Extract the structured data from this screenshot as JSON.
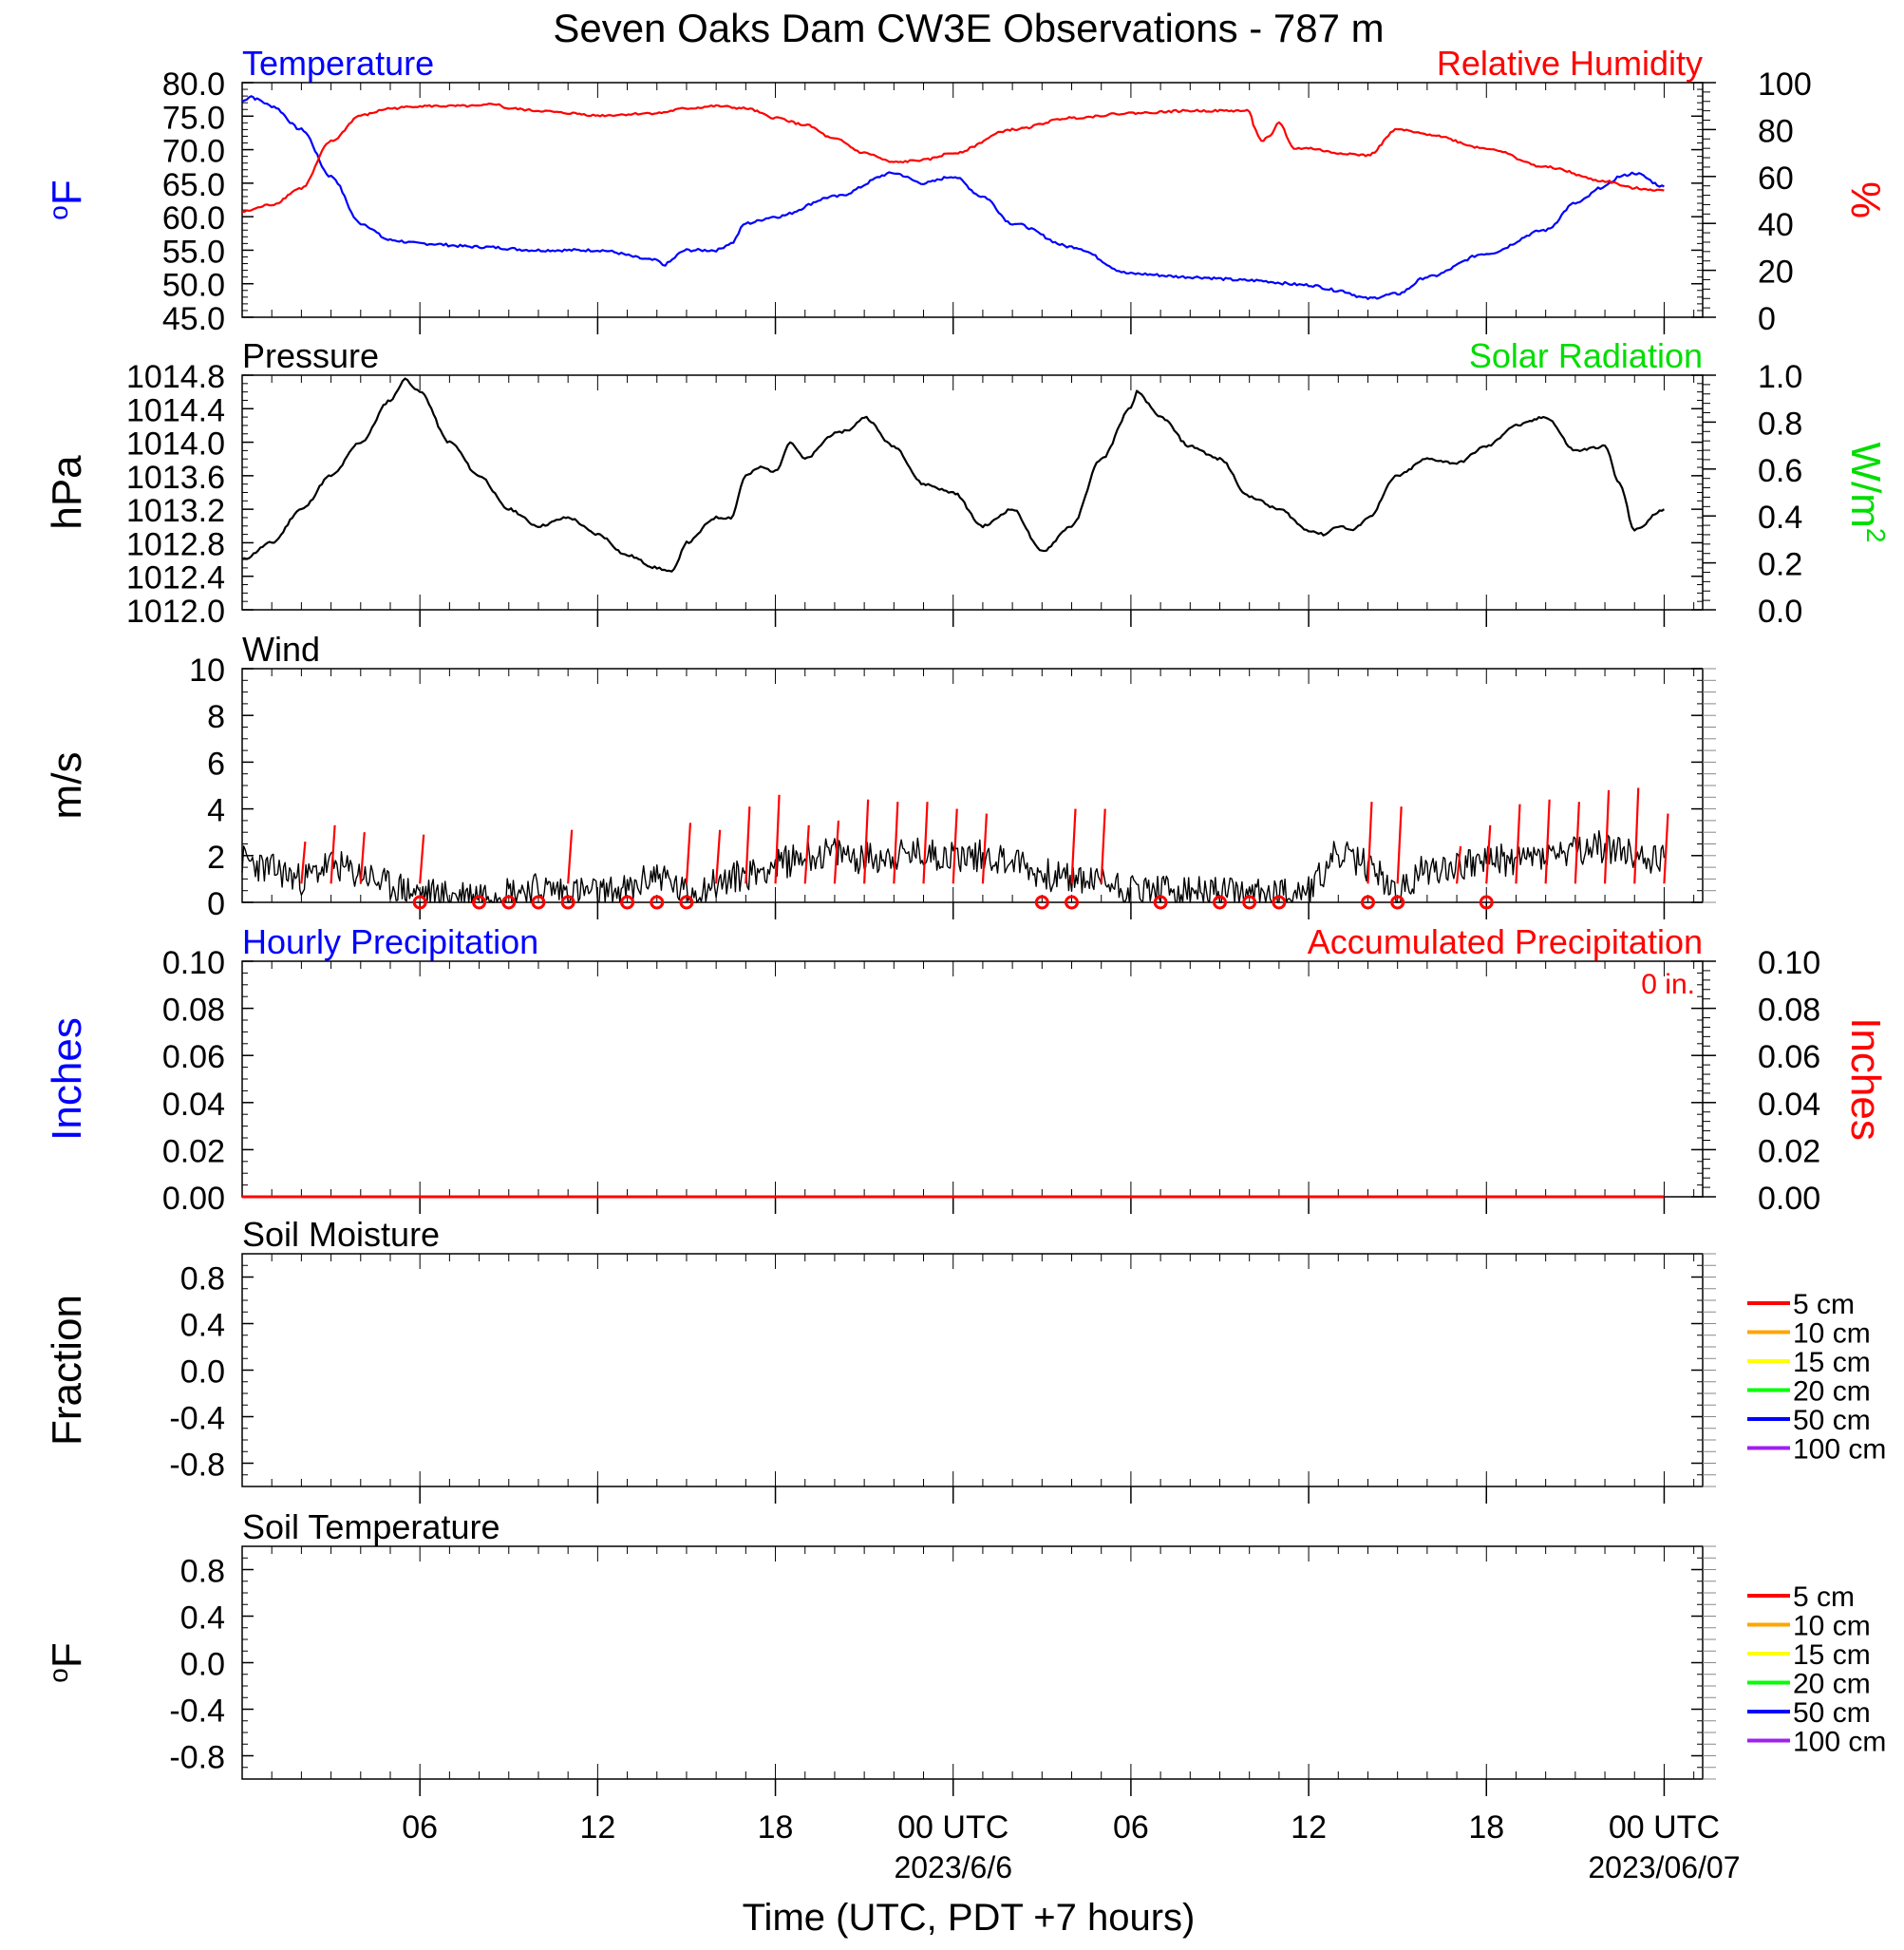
{
  "title": "Seven Oaks Dam CW3E Observations - 787 m",
  "xlabel": "Time (UTC, PDT +7 hours)",
  "x_ticks": [
    {
      "hour": 6,
      "label": "06",
      "sub": ""
    },
    {
      "hour": 12,
      "label": "12",
      "sub": ""
    },
    {
      "hour": 18,
      "label": "18",
      "sub": ""
    },
    {
      "hour": 24,
      "label": "00 UTC",
      "sub": "2023/6/6"
    },
    {
      "hour": 30,
      "label": "06",
      "sub": ""
    },
    {
      "hour": 36,
      "label": "12",
      "sub": ""
    },
    {
      "hour": 42,
      "label": "18",
      "sub": ""
    },
    {
      "hour": 48,
      "label": "00 UTC",
      "sub": "2023/06/07"
    }
  ],
  "colors": {
    "temperature": "#0000ff",
    "rh": "#ff0000",
    "pressure": "#000000",
    "solar": "#00dd00",
    "wind": "#000000",
    "barb": "#ff0000",
    "precip_hourly": "#0000ff",
    "precip_accum": "#ff0000"
  },
  "chart_data": [
    {
      "id": "temp_rh",
      "type": "line",
      "title_left": "Temperature",
      "title_right": "Relative Humidity",
      "ylabel_left": "oF",
      "ylabel_right": "%",
      "ylim_left": [
        45,
        80
      ],
      "yticks_left": [
        "80.0",
        "75.0",
        "70.0",
        "65.0",
        "60.0",
        "55.0",
        "50.0",
        "45.0"
      ],
      "ylim_right": [
        0,
        100
      ],
      "yticks_right": [
        "100",
        "80",
        "60",
        "40",
        "20",
        "0"
      ],
      "series": [
        {
          "name": "Temperature",
          "axis": "left",
          "x": [
            0,
            0.3,
            0.5,
            1,
            2,
            3,
            4,
            5,
            6,
            8,
            10,
            12,
            14,
            14.2,
            15,
            16,
            16.5,
            17,
            18,
            20,
            22,
            23,
            24,
            25,
            26,
            28,
            30,
            32,
            34,
            36,
            37,
            38,
            39,
            40,
            42,
            44,
            45,
            46,
            46.5,
            47,
            48
          ],
          "y": [
            77.2,
            78,
            77.5,
            76.5,
            73,
            66,
            59,
            56.5,
            56,
            55.5,
            55,
            55,
            53.5,
            52.8,
            55,
            55,
            56,
            59,
            60,
            63,
            66.5,
            65,
            66,
            63,
            59,
            55.5,
            51.5,
            51,
            50.5,
            49.8,
            49,
            47.8,
            48.5,
            51,
            54.5,
            58,
            62,
            64.5,
            66,
            66.5,
            64.5
          ]
        },
        {
          "name": "Relative Humidity",
          "axis": "right",
          "x": [
            0,
            1,
            2,
            3,
            4,
            5,
            6,
            8,
            8.5,
            9,
            10,
            11,
            12,
            14,
            15,
            16,
            17,
            18,
            19,
            20,
            21,
            22,
            23,
            24,
            26,
            28,
            30,
            32,
            33,
            34,
            34.2,
            34.4,
            34.7,
            35,
            35.5,
            36,
            37,
            38,
            39,
            40,
            42,
            44,
            46,
            47,
            48
          ],
          "y": [
            45,
            48,
            55,
            75,
            86,
            89,
            90,
            90,
            91,
            89,
            88,
            87,
            86,
            87,
            89,
            90,
            89,
            85,
            82,
            76,
            70,
            66,
            67,
            70,
            80,
            85,
            87,
            88,
            88,
            88,
            80,
            75,
            77,
            83,
            72,
            72,
            70,
            69,
            80,
            78,
            72,
            64,
            58,
            55,
            54
          ]
        }
      ]
    },
    {
      "id": "pressure",
      "type": "line",
      "title_left": "Pressure",
      "title_right": "Solar Radiation",
      "ylabel_left": "hPa",
      "ylabel_right": "W/m2",
      "ylim_left": [
        1012.0,
        1014.8
      ],
      "yticks_left": [
        "1014.8",
        "1014.4",
        "1014.0",
        "1013.6",
        "1013.2",
        "1012.8",
        "1012.4",
        "1012.0"
      ],
      "ylim_right": [
        0,
        1.0
      ],
      "yticks_right": [
        "1.0",
        "0.8",
        "0.6",
        "0.4",
        "0.2",
        "0.0"
      ],
      "series": [
        {
          "name": "Pressure",
          "axis": "left",
          "x": [
            0,
            1,
            2,
            3,
            4,
            5,
            5.5,
            6,
            7,
            8,
            9,
            10,
            11,
            12,
            13,
            14,
            14.5,
            15,
            16,
            16.5,
            17,
            17.5,
            18,
            18.5,
            19,
            20,
            20.5,
            21,
            22,
            23,
            24,
            25,
            26,
            27,
            28,
            29,
            30,
            30.2,
            31,
            32,
            33,
            34,
            35,
            36,
            36.5,
            37,
            37.5,
            38,
            39,
            40,
            41,
            42,
            43,
            44,
            45,
            46,
            46.5,
            47,
            48
          ],
          "y": [
            1012.6,
            1012.8,
            1013.2,
            1013.6,
            1014.0,
            1014.5,
            1014.75,
            1014.6,
            1014.0,
            1013.6,
            1013.2,
            1013.0,
            1013.1,
            1012.9,
            1012.65,
            1012.5,
            1012.45,
            1012.8,
            1013.1,
            1013.1,
            1013.6,
            1013.7,
            1013.65,
            1014.0,
            1013.8,
            1014.1,
            1014.15,
            1014.3,
            1013.95,
            1013.5,
            1013.4,
            1013.0,
            1013.2,
            1012.7,
            1013.0,
            1013.8,
            1014.4,
            1014.6,
            1014.3,
            1013.95,
            1013.8,
            1013.35,
            1013.2,
            1012.95,
            1012.9,
            1013.0,
            1012.95,
            1013.1,
            1013.6,
            1013.8,
            1013.75,
            1013.95,
            1014.2,
            1014.3,
            1013.9,
            1013.95,
            1013.5,
            1012.95,
            1013.2
          ]
        }
      ]
    },
    {
      "id": "wind",
      "type": "line",
      "title_left": "Wind",
      "ylabel_left": "m/s",
      "ylim_left": [
        0,
        10
      ],
      "yticks_left": [
        "10",
        "8",
        "6",
        "4",
        "2",
        "0"
      ],
      "series": [
        {
          "name": "Wind",
          "axis": "left",
          "x": [
            0,
            1,
            2,
            3,
            4,
            5,
            6,
            7,
            8,
            9,
            10,
            11,
            12,
            13,
            14,
            15,
            16,
            17,
            18,
            19,
            20,
            21,
            22,
            23,
            24,
            25,
            26,
            27,
            28,
            29,
            30,
            31,
            32,
            33,
            34,
            35,
            36,
            37,
            38,
            39,
            40,
            41,
            42,
            43,
            44,
            45,
            46,
            47,
            48
          ],
          "y": [
            1.8,
            1.4,
            1.0,
            1.6,
            1.2,
            0.7,
            0.4,
            0.3,
            0.4,
            0.5,
            0.6,
            0.5,
            0.4,
            0.5,
            1.2,
            0.4,
            0.8,
            1.2,
            1.6,
            2.0,
            2.1,
            1.9,
            2.0,
            2.1,
            2.0,
            2.0,
            1.8,
            1.2,
            1.0,
            0.9,
            0.6,
            0.5,
            0.4,
            0.4,
            0.3,
            0.4,
            0.6,
            2.0,
            1.6,
            0.4,
            1.4,
            1.6,
            1.8,
            1.8,
            2.0,
            2.1,
            2.4,
            2.0,
            1.9
          ]
        }
      ],
      "barb_hours": [
        2,
        3,
        4,
        5,
        6,
        7,
        8,
        9,
        10,
        11,
        12,
        13,
        14,
        15,
        16,
        17,
        18,
        19,
        20,
        21,
        22,
        23,
        24,
        25,
        26,
        27,
        28,
        29,
        30,
        31,
        32,
        33,
        34,
        35,
        36,
        37,
        38,
        39,
        40,
        41,
        42,
        43,
        44,
        45,
        46,
        47,
        48
      ],
      "barb_speeds": [
        1.8,
        2.5,
        2.2,
        0.0,
        2.1,
        0.0,
        0.0,
        0.0,
        0.0,
        2.3,
        0.0,
        0.0,
        0.0,
        2.6,
        2.3,
        3.3,
        3.8,
        2.5,
        2.7,
        3.6,
        3.5,
        3.5,
        3.2,
        3.0,
        0.0,
        0.0,
        3.2,
        3.2,
        0.0,
        0.0,
        0.0,
        0.0,
        0.0,
        0.0,
        0.0,
        0.0,
        3.5,
        3.3,
        0.0,
        1.6,
        2.5,
        3.4,
        3.6,
        3.5,
        4.0,
        4.1,
        3.0
      ],
      "calm_hours": [
        6,
        8,
        9,
        10,
        11,
        13,
        14,
        15,
        27,
        28,
        31,
        33,
        34,
        35,
        38,
        39,
        42
      ]
    },
    {
      "id": "precip",
      "type": "line",
      "title_left": "Hourly Precipitation",
      "title_right": "Accumulated Precipitation",
      "annotation": "0 in.",
      "ylabel_left": "Inches",
      "ylabel_right": "Inches",
      "ylim_left": [
        0,
        0.1
      ],
      "yticks_left": [
        "0.10",
        "0.08",
        "0.06",
        "0.04",
        "0.02",
        "0.00"
      ],
      "yticks_right": [
        "0.10",
        "0.08",
        "0.06",
        "0.04",
        "0.02",
        "0.00"
      ],
      "series": [
        {
          "name": "Hourly Precipitation",
          "axis": "left",
          "x": [
            0,
            48
          ],
          "y": [
            0,
            0
          ]
        },
        {
          "name": "Accumulated Precipitation",
          "axis": "right",
          "x": [
            0,
            48
          ],
          "y": [
            0,
            0
          ]
        }
      ]
    },
    {
      "id": "soil_moisture",
      "type": "line",
      "title_left": "Soil Moisture",
      "ylabel_left": "Fraction",
      "ylim_left": [
        -1,
        1
      ],
      "yticks_left": [
        "0.8",
        "0.4",
        "0.0",
        "-0.4",
        "-0.8"
      ],
      "legend": [
        {
          "label": "5 cm",
          "color": "#ff0000"
        },
        {
          "label": "10 cm",
          "color": "#ffa500"
        },
        {
          "label": "15 cm",
          "color": "#ffff00"
        },
        {
          "label": "20 cm",
          "color": "#00ff00"
        },
        {
          "label": "50 cm",
          "color": "#0000ff"
        },
        {
          "label": "100 cm",
          "color": "#a020f0"
        }
      ]
    },
    {
      "id": "soil_temperature",
      "type": "line",
      "title_left": "Soil Temperature",
      "ylabel_left": "oF",
      "ylim_left": [
        -1,
        1
      ],
      "yticks_left": [
        "0.8",
        "0.4",
        "0.0",
        "-0.4",
        "-0.8"
      ],
      "legend": [
        {
          "label": "5 cm",
          "color": "#ff0000"
        },
        {
          "label": "10 cm",
          "color": "#ffa500"
        },
        {
          "label": "15 cm",
          "color": "#ffff00"
        },
        {
          "label": "20 cm",
          "color": "#00ff00"
        },
        {
          "label": "50 cm",
          "color": "#0000ff"
        },
        {
          "label": "100 cm",
          "color": "#a020f0"
        }
      ]
    }
  ]
}
